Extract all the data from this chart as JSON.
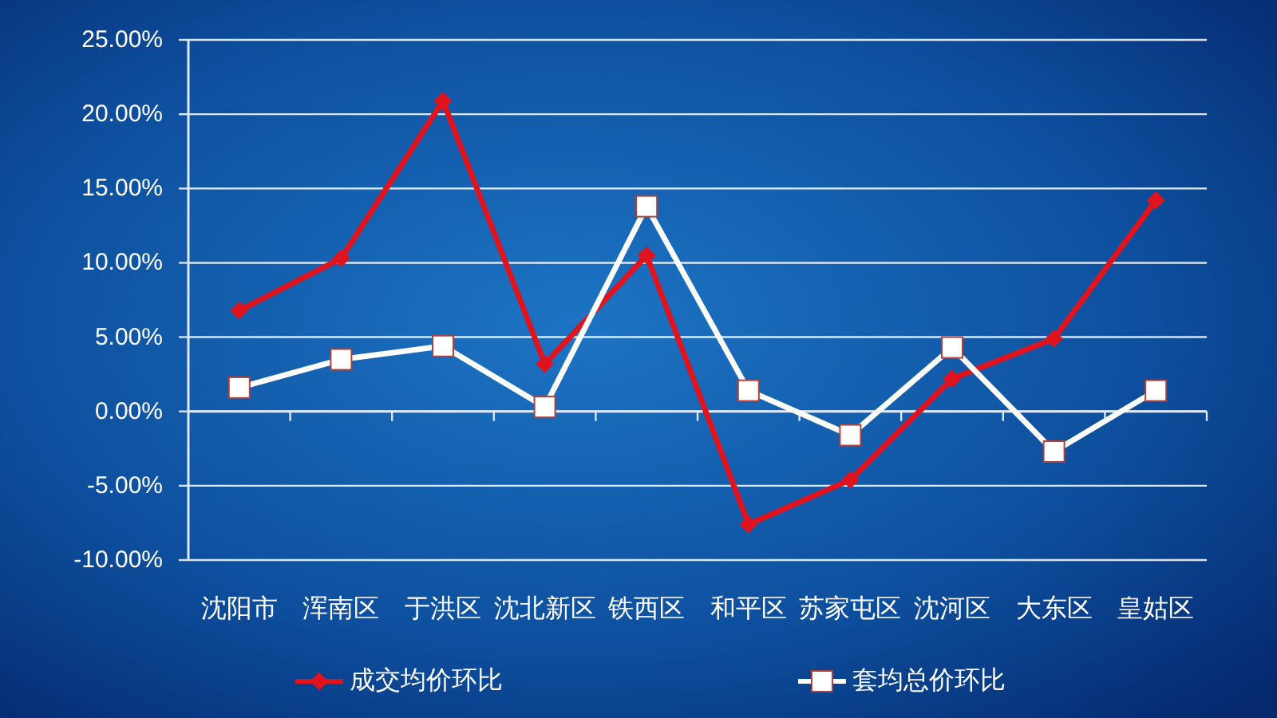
{
  "chart_data": {
    "type": "line",
    "categories": [
      "沈阳市",
      "浑南区",
      "于洪区",
      "沈北新区",
      "铁西区",
      "和平区",
      "苏家屯区",
      "沈河区",
      "大东区",
      "皇姑区"
    ],
    "series": [
      {
        "name": "成交均价环比",
        "color": "#e0141e",
        "marker": "diamond",
        "values": [
          6.8,
          10.3,
          20.9,
          3.2,
          10.5,
          -7.6,
          -4.6,
          2.2,
          4.9,
          14.2
        ]
      },
      {
        "name": "套均总价环比",
        "color": "#ffffff",
        "marker": "square",
        "values": [
          1.6,
          3.5,
          4.4,
          0.3,
          13.8,
          1.4,
          -1.6,
          4.3,
          -2.7,
          1.4
        ]
      }
    ],
    "ylim": [
      -10,
      25
    ],
    "yticks": [
      {
        "value": -10,
        "label": "-10.00%"
      },
      {
        "value": -5,
        "label": "-5.00%"
      },
      {
        "value": 0,
        "label": "0.00%"
      },
      {
        "value": 5,
        "label": "5.00%"
      },
      {
        "value": 10,
        "label": "10.00%"
      },
      {
        "value": 15,
        "label": "15.00%"
      },
      {
        "value": 20,
        "label": "20.00%"
      },
      {
        "value": 25,
        "label": "25.00%"
      }
    ],
    "grid": "y",
    "legend": "bottom",
    "line_style": "solid"
  }
}
